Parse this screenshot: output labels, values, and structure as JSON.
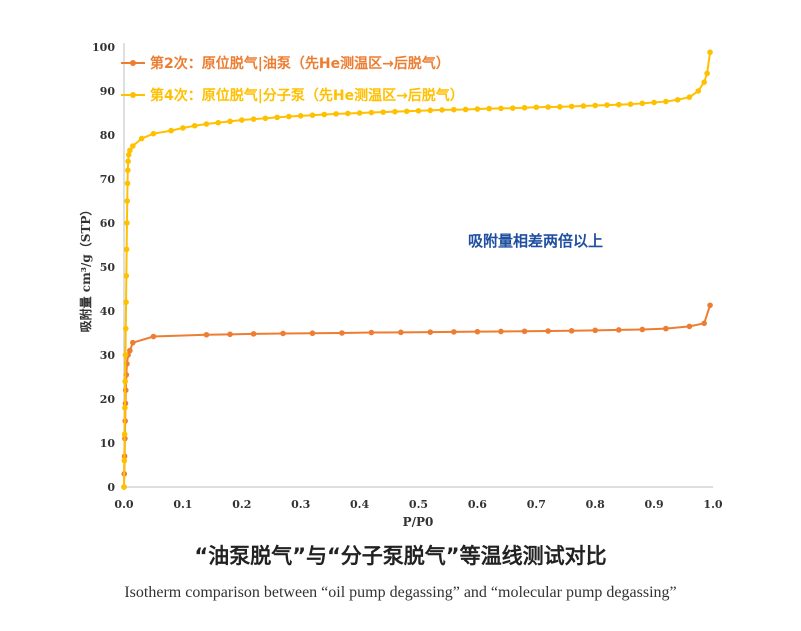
{
  "chart_data": {
    "type": "line",
    "xlabel": "P/P0",
    "ylabel": "吸附量 cm³/g（STP）",
    "xlim": [
      0.0,
      1.0
    ],
    "ylim": [
      0,
      100
    ],
    "x_ticks": [
      "0.0",
      "0.1",
      "0.2",
      "0.3",
      "0.4",
      "0.5",
      "0.6",
      "0.7",
      "0.8",
      "0.9",
      "1.0"
    ],
    "y_ticks": [
      "0",
      "10",
      "20",
      "30",
      "40",
      "50",
      "60",
      "70",
      "80",
      "90",
      "100"
    ],
    "grid": false,
    "legend_position": "top-left",
    "annotation": "吸附量相差两倍以上",
    "series": [
      {
        "name": "第2次：原位脱气|油泵（先He测温区→后脱气）",
        "color": "#ed7d31",
        "x": [
          0.0,
          0.0005,
          0.001,
          0.0015,
          0.002,
          0.0025,
          0.003,
          0.004,
          0.005,
          0.007,
          0.01,
          0.015,
          0.05,
          0.14,
          0.18,
          0.22,
          0.27,
          0.32,
          0.37,
          0.42,
          0.47,
          0.52,
          0.56,
          0.6,
          0.64,
          0.68,
          0.72,
          0.76,
          0.8,
          0.84,
          0.88,
          0.92,
          0.96,
          0.985,
          0.995
        ],
        "y": [
          0,
          3,
          7,
          11,
          15,
          19,
          22,
          25.5,
          28,
          30,
          31,
          32.8,
          34.2,
          34.6,
          34.7,
          34.8,
          34.9,
          34.95,
          35.0,
          35.1,
          35.15,
          35.2,
          35.25,
          35.3,
          35.35,
          35.4,
          35.45,
          35.5,
          35.6,
          35.7,
          35.8,
          36.0,
          36.5,
          37.2,
          41.3
        ]
      },
      {
        "name": "第4次：原位脱气|分子泵（先He测温区→后脱气）",
        "color": "#ffc000",
        "x": [
          0.0,
          0.0005,
          0.001,
          0.0015,
          0.002,
          0.0025,
          0.003,
          0.0035,
          0.004,
          0.0045,
          0.005,
          0.0055,
          0.006,
          0.0065,
          0.007,
          0.008,
          0.01,
          0.015,
          0.03,
          0.05,
          0.08,
          0.1,
          0.12,
          0.14,
          0.16,
          0.18,
          0.2,
          0.22,
          0.24,
          0.26,
          0.28,
          0.3,
          0.32,
          0.34,
          0.36,
          0.38,
          0.4,
          0.42,
          0.44,
          0.46,
          0.48,
          0.5,
          0.52,
          0.54,
          0.56,
          0.58,
          0.6,
          0.62,
          0.64,
          0.66,
          0.68,
          0.7,
          0.72,
          0.74,
          0.76,
          0.78,
          0.8,
          0.82,
          0.84,
          0.86,
          0.88,
          0.9,
          0.92,
          0.94,
          0.96,
          0.975,
          0.985,
          0.99,
          0.995
        ],
        "y": [
          0,
          6,
          12,
          18,
          24,
          30,
          36,
          42,
          48,
          54,
          60,
          65,
          69,
          72,
          74,
          75.5,
          76.5,
          77.5,
          79.2,
          80.3,
          81,
          81.6,
          82.1,
          82.5,
          82.8,
          83.1,
          83.4,
          83.6,
          83.8,
          84.0,
          84.2,
          84.35,
          84.5,
          84.65,
          84.8,
          84.9,
          85.0,
          85.1,
          85.2,
          85.3,
          85.4,
          85.5,
          85.6,
          85.7,
          85.75,
          85.8,
          85.9,
          86.0,
          86.05,
          86.1,
          86.2,
          86.3,
          86.35,
          86.4,
          86.5,
          86.6,
          86.7,
          86.8,
          86.9,
          87.0,
          87.2,
          87.4,
          87.6,
          88.0,
          88.6,
          90.0,
          92.0,
          94.0,
          98.8
        ]
      }
    ]
  },
  "caption": {
    "chinese": "“油泵脱气”与“分子泵脱气”等温线测试对比",
    "english": "Isotherm comparison between “oil pump degassing” and “molecular pump degassing”"
  }
}
